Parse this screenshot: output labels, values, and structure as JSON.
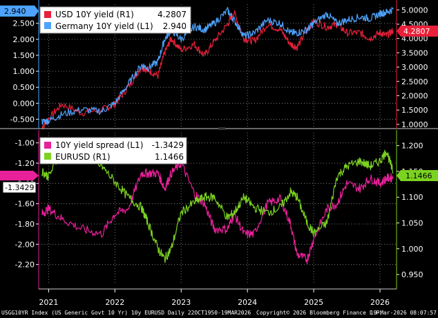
{
  "colors": {
    "background": "#000000",
    "usd": "#e8203a",
    "germany": "#4da3ff",
    "spread": "#e8209a",
    "eurusd": "#7bd321",
    "grid": "#9a9a9a",
    "tick_text": "#ffffff",
    "legend_bg": "#ffffff"
  },
  "footer": {
    "left": "USGG10YR Index (US Generic Govt 10 Yr) 10y EURUSD Daily 22OCT1950-19MAR2026",
    "center": "Copyright© 2026 Bloomberg Finance L.P.",
    "right": "19-Mar-2026 08:07:57"
  },
  "chart_data": [
    {
      "type": "line",
      "panel": "top",
      "title": "",
      "x_ticks": [
        "2021",
        "2022",
        "2023",
        "2024",
        "2025",
        "2026"
      ],
      "left_axis": {
        "ticks": [
          "-0.500",
          "0.000",
          "0.500",
          "1.000",
          "1.500",
          "2.000",
          "2.500"
        ],
        "ylim": [
          -0.75,
          3.1
        ]
      },
      "right_axis": {
        "ticks": [
          "1.0000",
          "1.5000",
          "2.0000",
          "2.5000",
          "3.0000",
          "3.5000",
          "4.0000",
          "4.5000",
          "5.0000"
        ],
        "ylim": [
          0.9,
          5.2
        ]
      },
      "legend": {
        "position": "top-left"
      },
      "series": [
        {
          "name": "USD 10Y yield (R1)",
          "last_label": "4.2807",
          "axis": "right",
          "color_key": "usd",
          "x": [
            2020.9,
            2021.0,
            2021.2,
            2021.5,
            2021.8,
            2022.0,
            2022.2,
            2022.4,
            2022.5,
            2022.65,
            2022.75,
            2022.85,
            2023.0,
            2023.2,
            2023.35,
            2023.5,
            2023.7,
            2023.8,
            2023.95,
            2024.1,
            2024.3,
            2024.5,
            2024.65,
            2024.75,
            2024.9,
            2025.0,
            2025.2,
            2025.35,
            2025.5,
            2025.7,
            2025.85,
            2026.0,
            2026.1,
            2026.2
          ],
          "values": [
            0.9,
            1.2,
            1.7,
            1.4,
            1.5,
            1.7,
            2.3,
            3.0,
            2.9,
            2.7,
            3.5,
            4.0,
            3.6,
            3.8,
            3.4,
            3.9,
            4.5,
            4.9,
            4.0,
            3.9,
            4.5,
            4.3,
            3.8,
            3.7,
            4.3,
            4.6,
            4.4,
            4.5,
            4.2,
            4.2,
            4.0,
            4.2,
            4.1,
            4.28
          ]
        },
        {
          "name": "Germany 10Y yield (L1)",
          "last_label": "2.940",
          "axis": "left",
          "color_key": "germany",
          "x": [
            2020.9,
            2021.0,
            2021.2,
            2021.5,
            2021.8,
            2022.0,
            2022.2,
            2022.4,
            2022.5,
            2022.65,
            2022.75,
            2022.85,
            2023.0,
            2023.2,
            2023.35,
            2023.5,
            2023.7,
            2023.8,
            2023.95,
            2024.1,
            2024.3,
            2024.5,
            2024.65,
            2024.75,
            2024.9,
            2025.0,
            2025.2,
            2025.35,
            2025.5,
            2025.7,
            2025.85,
            2026.0,
            2026.1,
            2026.2
          ],
          "values": [
            -0.58,
            -0.55,
            -0.35,
            -0.2,
            -0.25,
            0.0,
            0.6,
            1.2,
            1.1,
            1.3,
            2.0,
            2.3,
            2.0,
            2.4,
            2.3,
            2.5,
            2.9,
            2.6,
            2.1,
            2.2,
            2.6,
            2.5,
            2.2,
            2.2,
            2.3,
            2.5,
            2.8,
            2.5,
            2.6,
            2.7,
            2.65,
            2.8,
            2.85,
            2.94
          ]
        }
      ]
    },
    {
      "type": "line",
      "panel": "bottom",
      "title": "",
      "x_ticks": [
        "2021",
        "2022",
        "2023",
        "2024",
        "2025",
        "2026"
      ],
      "left_axis": {
        "ticks": [
          "-2.20",
          "-2.00",
          "-1.80",
          "-1.60",
          "-1.40",
          "-1.20",
          "-1.00"
        ],
        "ylim": [
          -2.4,
          -0.9
        ]
      },
      "right_axis": {
        "ticks": [
          "0.950",
          "1.000",
          "1.050",
          "1.100",
          "1.150",
          "1.200"
        ],
        "ylim": [
          0.93,
          1.225
        ]
      },
      "legend": {
        "position": "top-left"
      },
      "series": [
        {
          "name": "10Y yield spread (L1)",
          "last_label": "-1.3429",
          "axis": "left",
          "color_key": "spread",
          "x": [
            2020.9,
            2021.0,
            2021.2,
            2021.5,
            2021.8,
            2022.0,
            2022.2,
            2022.4,
            2022.5,
            2022.65,
            2022.75,
            2022.85,
            2023.0,
            2023.2,
            2023.35,
            2023.5,
            2023.7,
            2023.8,
            2023.95,
            2024.1,
            2024.3,
            2024.5,
            2024.65,
            2024.75,
            2024.9,
            2025.0,
            2025.2,
            2025.35,
            2025.5,
            2025.7,
            2025.85,
            2026.0,
            2026.1,
            2026.2
          ],
          "values": [
            -1.7,
            -1.65,
            -1.75,
            -1.85,
            -1.9,
            -1.7,
            -1.65,
            -1.3,
            -1.3,
            -1.3,
            -1.45,
            -1.3,
            -1.2,
            -1.5,
            -1.6,
            -1.85,
            -1.85,
            -1.7,
            -1.9,
            -1.9,
            -1.6,
            -1.55,
            -1.8,
            -2.1,
            -2.15,
            -1.95,
            -1.65,
            -1.6,
            -1.4,
            -1.45,
            -1.35,
            -1.4,
            -1.35,
            -1.34
          ]
        },
        {
          "name": "EURUSD (R1)",
          "last_label": "1.1466",
          "axis": "right",
          "color_key": "eurusd",
          "x": [
            2020.9,
            2021.0,
            2021.2,
            2021.5,
            2021.8,
            2022.0,
            2022.2,
            2022.4,
            2022.5,
            2022.65,
            2022.75,
            2022.85,
            2023.0,
            2023.2,
            2023.35,
            2023.5,
            2023.7,
            2023.8,
            2023.95,
            2024.1,
            2024.3,
            2024.5,
            2024.65,
            2024.75,
            2024.9,
            2025.0,
            2025.2,
            2025.35,
            2025.5,
            2025.7,
            2025.85,
            2026.0,
            2026.1,
            2026.2
          ],
          "values": [
            1.15,
            1.14,
            1.19,
            1.18,
            1.16,
            1.13,
            1.1,
            1.08,
            1.05,
            1.0,
            0.98,
            1.0,
            1.07,
            1.09,
            1.1,
            1.1,
            1.06,
            1.07,
            1.1,
            1.08,
            1.07,
            1.08,
            1.11,
            1.1,
            1.05,
            1.03,
            1.05,
            1.14,
            1.16,
            1.17,
            1.16,
            1.17,
            1.19,
            1.1466
          ]
        }
      ]
    }
  ]
}
